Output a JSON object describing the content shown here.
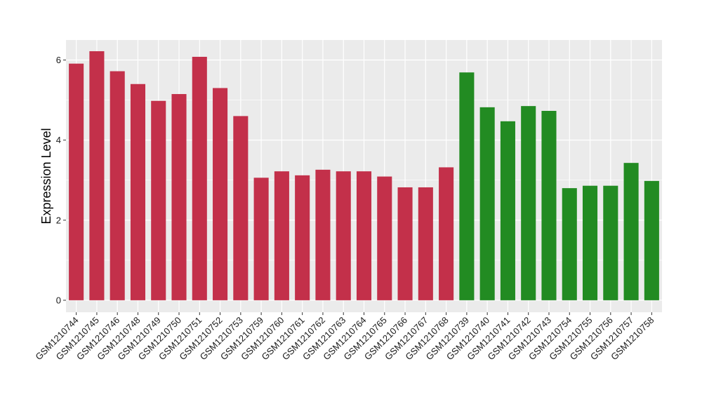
{
  "chart_data": {
    "type": "bar",
    "ylabel": "Expression Level",
    "xlabel": "",
    "ylim": [
      -0.3,
      6.5
    ],
    "yticks": [
      0,
      2,
      4,
      6
    ],
    "grid": true,
    "legend": "none",
    "panel_background": "#ebebeb",
    "grid_color": "#ffffff",
    "categories": [
      "GSM1210744",
      "GSM1210745",
      "GSM1210746",
      "GSM1210748",
      "GSM1210749",
      "GSM1210750",
      "GSM1210751",
      "GSM1210752",
      "GSM1210753",
      "GSM1210759",
      "GSM1210760",
      "GSM1210761",
      "GSM1210762",
      "GSM1210763",
      "GSM1210764",
      "GSM1210765",
      "GSM1210766",
      "GSM1210767",
      "GSM1210768",
      "GSM1210739",
      "GSM1210740",
      "GSM1210741",
      "GSM1210742",
      "GSM1210743",
      "GSM1210754",
      "GSM1210755",
      "GSM1210756",
      "GSM1210757",
      "GSM1210758"
    ],
    "values": [
      5.91,
      6.22,
      5.72,
      5.4,
      4.98,
      5.15,
      6.08,
      5.3,
      4.6,
      3.06,
      3.22,
      3.12,
      3.26,
      3.22,
      3.22,
      3.09,
      2.82,
      2.82,
      3.32,
      5.69,
      4.82,
      4.47,
      4.85,
      4.73,
      2.8,
      2.86,
      2.86,
      3.43,
      2.98
    ],
    "bar_colors": [
      "#c3304a",
      "#c3304a",
      "#c3304a",
      "#c3304a",
      "#c3304a",
      "#c3304a",
      "#c3304a",
      "#c3304a",
      "#c3304a",
      "#c3304a",
      "#c3304a",
      "#c3304a",
      "#c3304a",
      "#c3304a",
      "#c3304a",
      "#c3304a",
      "#c3304a",
      "#c3304a",
      "#c3304a",
      "#228b22",
      "#228b22",
      "#228b22",
      "#228b22",
      "#228b22",
      "#228b22",
      "#228b22",
      "#228b22",
      "#228b22",
      "#228b22"
    ]
  }
}
